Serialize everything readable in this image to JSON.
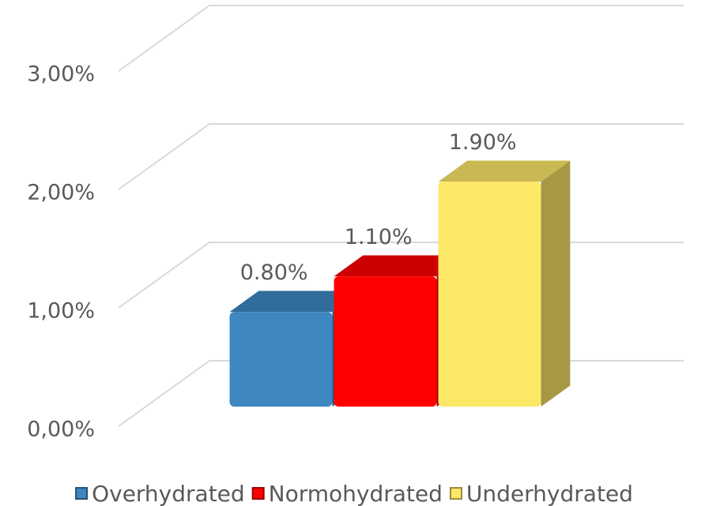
{
  "chart_data": {
    "type": "bar3d",
    "categories": [
      null
    ],
    "series": [
      {
        "name": "Overhydrated",
        "color": "#3f87c0",
        "values": [
          0.8
        ],
        "value_labels": [
          "0.80%"
        ]
      },
      {
        "name": "Normohydrated",
        "color": "#ff0000",
        "values": [
          1.1
        ],
        "value_labels": [
          "1.10%"
        ]
      },
      {
        "name": "Underhydrated",
        "color": "#fde767",
        "values": [
          1.9
        ],
        "value_labels": [
          "1.90%"
        ]
      }
    ],
    "ylim": [
      0,
      3
    ],
    "yticks": [
      {
        "value": 0,
        "label": "0,00%"
      },
      {
        "value": 1,
        "label": "1,00%"
      },
      {
        "value": 2,
        "label": "2,00%"
      },
      {
        "value": 3,
        "label": "3,00%"
      }
    ],
    "grid": true,
    "legend": "bottom"
  }
}
